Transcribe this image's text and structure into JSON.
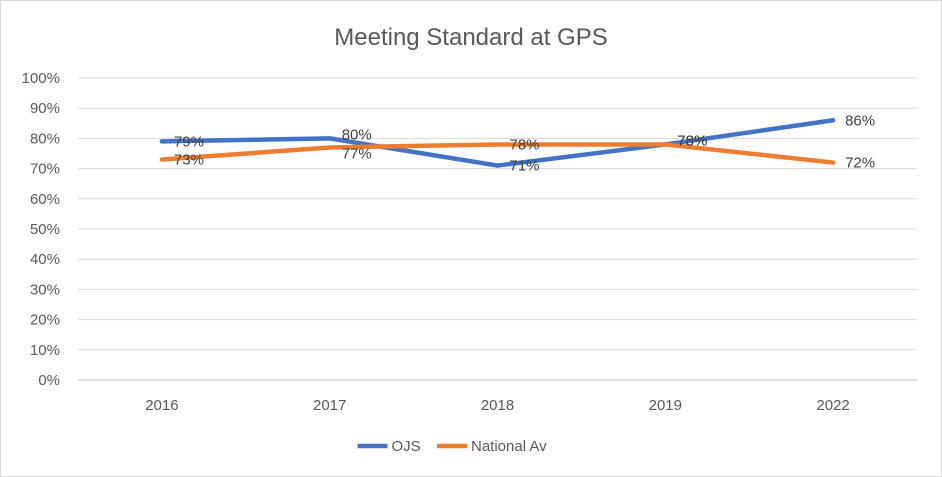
{
  "chart_data": {
    "type": "line",
    "title": "Meeting Standard at GPS",
    "xlabel": "",
    "ylabel": "",
    "categories": [
      "2016",
      "2017",
      "2018",
      "2019",
      "2022"
    ],
    "ylim": [
      0,
      100
    ],
    "y_ticks": [
      "0%",
      "10%",
      "20%",
      "30%",
      "40%",
      "50%",
      "60%",
      "70%",
      "80%",
      "90%",
      "100%"
    ],
    "grid": true,
    "legend_position": "bottom",
    "series": [
      {
        "name": "OJS",
        "color": "#4472c4",
        "values": [
          79,
          80,
          71,
          78,
          86
        ],
        "labels": [
          "79%",
          "80%",
          "71%",
          "78%",
          "86%"
        ]
      },
      {
        "name": "National Av",
        "color": "#ed7d31",
        "values": [
          73,
          77,
          78,
          78,
          72
        ],
        "labels": [
          "73%",
          "77%",
          "78%",
          "78%",
          "72%"
        ]
      }
    ]
  }
}
